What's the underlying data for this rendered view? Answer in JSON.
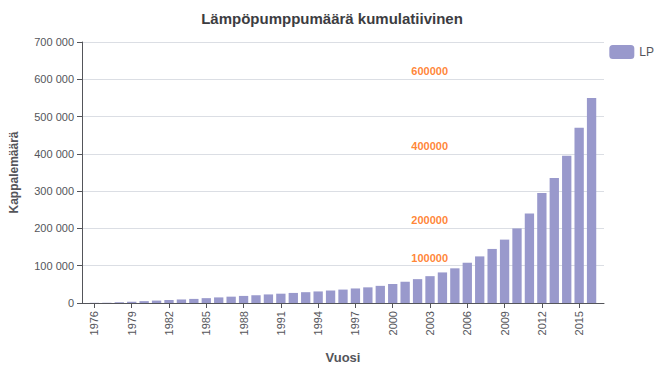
{
  "chart_data": {
    "type": "bar",
    "title": "Lämpöpumppumäärä kumulatiivinen",
    "xlabel": "Vuosi",
    "ylabel": "Kappalemäärä",
    "series": [
      {
        "name": "LP",
        "color": "#9999cc",
        "values": [
          500,
          1000,
          2000,
          3500,
          5000,
          6500,
          8000,
          9500,
          11000,
          13000,
          15000,
          17000,
          19000,
          21000,
          23000,
          25000,
          27000,
          29000,
          31000,
          33500,
          36000,
          39000,
          42000,
          46000,
          51000,
          57000,
          64000,
          72000,
          82000,
          93000,
          108000,
          125000,
          145000,
          170000,
          200000,
          240000,
          295000,
          335000,
          395000,
          470000,
          550000
        ]
      }
    ],
    "x": [
      1976,
      1977,
      1978,
      1979,
      1980,
      1981,
      1982,
      1983,
      1984,
      1985,
      1986,
      1987,
      1988,
      1989,
      1990,
      1991,
      1992,
      1993,
      1994,
      1995,
      1996,
      1997,
      1998,
      1999,
      2000,
      2001,
      2002,
      2003,
      2004,
      2005,
      2006,
      2007,
      2008,
      2009,
      2010,
      2011,
      2012,
      2013,
      2014,
      2015,
      2016
    ],
    "xlim": [
      1975,
      2017
    ],
    "xticks": [
      1976,
      1979,
      1982,
      1985,
      1988,
      1991,
      1994,
      1997,
      2000,
      2003,
      2006,
      2009,
      2012,
      2015
    ],
    "ylim": [
      0,
      700000
    ],
    "yticks": [
      0,
      {
        "value": 100000,
        "label": "100 000"
      },
      {
        "value": 200000,
        "label": "200 000"
      },
      {
        "value": 300000,
        "label": "300 000"
      },
      {
        "value": 400000,
        "label": "400 000"
      },
      {
        "value": 500000,
        "label": "500 000"
      },
      {
        "value": 600000,
        "label": "600 000"
      },
      {
        "value": 700000,
        "label": "700 000"
      }
    ],
    "grid": true,
    "legend": "right",
    "annotations": [
      {
        "text": "100000",
        "x": 2001.5,
        "y": 107000,
        "color": "#ff6600"
      },
      {
        "text": "200000",
        "x": 2001.5,
        "y": 207000,
        "color": "#ff6600"
      },
      {
        "text": "400000",
        "x": 2001.5,
        "y": 407000,
        "color": "#ff6600"
      },
      {
        "text": "600000",
        "x": 2001.5,
        "y": 607000,
        "color": "#ff6600"
      }
    ]
  }
}
